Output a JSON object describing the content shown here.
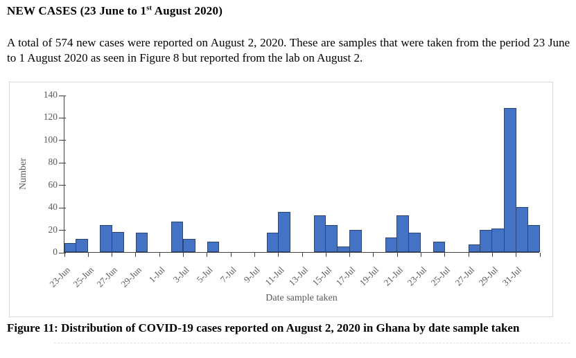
{
  "document": {
    "heading": {
      "prefix": "NEW CASES (23 June to 1",
      "superscript": "st",
      "suffix": " August 2020)"
    },
    "paragraph": "A total of 574 new cases were reported on August 2, 2020. These are samples that were taken from the period 23 June to 1 August 2020 as seen in Figure 8 but reported from the lab on August 2.",
    "caption": "Figure 11: Distribution of COVID-19 cases reported on August 2, 2020 in Ghana by date sample taken"
  },
  "chart_data": {
    "type": "bar",
    "title": "",
    "xlabel": "Date sample taken",
    "ylabel": "Number",
    "ylim": [
      0,
      140
    ],
    "y_ticks": [
      0,
      20,
      40,
      60,
      80,
      100,
      120,
      140
    ],
    "grid": false,
    "legend": false,
    "total_cases": 574,
    "x_tick_labels": [
      "23-Jun",
      "25-Jun",
      "27-Jun",
      "29-Jun",
      "1-Jul",
      "3-Jul",
      "5-Jul",
      "7-Jul",
      "9-Jul",
      "11-Jul",
      "13-Jul",
      "15-Jul",
      "17-Jul",
      "19-Jul",
      "21-Jul",
      "23-Jul",
      "25-Jul",
      "27-Jul",
      "29-Jul",
      "31-Jul"
    ],
    "categories": [
      "23-Jun",
      "24-Jun",
      "25-Jun",
      "26-Jun",
      "27-Jun",
      "28-Jun",
      "29-Jun",
      "30-Jun",
      "1-Jul",
      "2-Jul",
      "3-Jul",
      "4-Jul",
      "5-Jul",
      "6-Jul",
      "7-Jul",
      "8-Jul",
      "9-Jul",
      "10-Jul",
      "11-Jul",
      "12-Jul",
      "13-Jul",
      "14-Jul",
      "15-Jul",
      "16-Jul",
      "17-Jul",
      "18-Jul",
      "19-Jul",
      "20-Jul",
      "21-Jul",
      "22-Jul",
      "23-Jul",
      "24-Jul",
      "25-Jul",
      "26-Jul",
      "27-Jul",
      "28-Jul",
      "29-Jul",
      "30-Jul",
      "31-Jul",
      "1-Aug"
    ],
    "values": [
      8,
      12,
      0,
      24,
      18,
      0,
      17,
      0,
      0,
      27,
      12,
      0,
      9,
      0,
      0,
      0,
      0,
      17,
      36,
      0,
      0,
      33,
      24,
      5,
      20,
      0,
      0,
      13,
      33,
      17,
      0,
      9,
      0,
      0,
      7,
      20,
      21,
      128,
      40,
      24
    ],
    "colors": {
      "bar_fill": "#4472C4",
      "bar_border": "#2B4472",
      "axis_line": "#404040",
      "axis_text": "#595959",
      "chart_border": "#D9D9D9"
    }
  }
}
